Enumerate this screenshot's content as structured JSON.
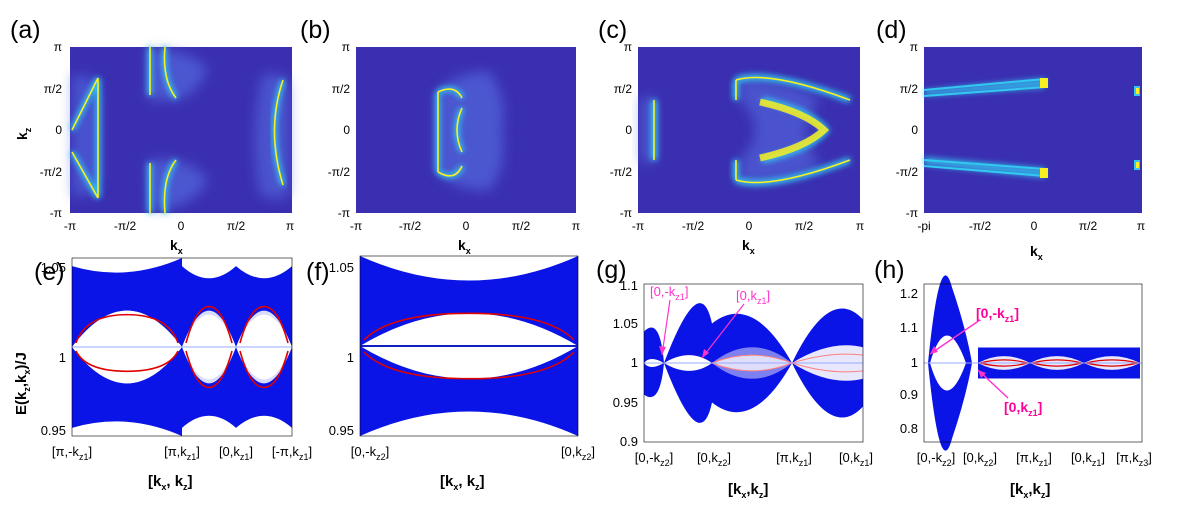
{
  "panel_labels": [
    "(a)",
    "(b)",
    "(c)",
    "(d)",
    "(e)",
    "(f)",
    "(g)",
    "(h)"
  ],
  "colors": {
    "map_background": "#3a2fb0",
    "ridge_glow": "#33c8f0",
    "ridge_core": "#f8f020",
    "band_blue": "#0a14e6",
    "band_light": "#c8c8f8",
    "red_line": "#e00000",
    "center_line_light": "#9aa8ff",
    "pink": "#ff33cc"
  },
  "chart_data": [
    {
      "type": "heatmap",
      "panel": "(a)",
      "xlabel": "k",
      "xlabel_sub": "x",
      "ylabel": "k",
      "ylabel_sub": "z",
      "x_ticks": [
        "-π",
        "-π/2",
        "0",
        "π/2",
        "π"
      ],
      "y_ticks": [
        "π",
        "π/2",
        "0",
        "-π/2",
        "-π"
      ],
      "xlim": [
        -3.1416,
        3.1416
      ],
      "ylim": [
        -3.1416,
        3.1416
      ]
    },
    {
      "type": "heatmap",
      "panel": "(b)",
      "xlabel": "k",
      "xlabel_sub": "x",
      "x_ticks": [
        "-π",
        "-π/2",
        "0",
        "π/2",
        "π"
      ],
      "y_ticks": [
        "π",
        "π/2",
        "0",
        "-π/2",
        "-π"
      ],
      "xlim": [
        -3.1416,
        3.1416
      ],
      "ylim": [
        -3.1416,
        3.1416
      ]
    },
    {
      "type": "heatmap",
      "panel": "(c)",
      "xlabel": "k",
      "xlabel_sub": "x",
      "x_ticks": [
        "-π",
        "-π/2",
        "0",
        "π/2",
        "π"
      ],
      "y_ticks": [
        "π",
        "π/2",
        "0",
        "-π/2",
        "-π"
      ],
      "xlim": [
        -3.1416,
        3.1416
      ],
      "ylim": [
        -3.1416,
        3.1416
      ]
    },
    {
      "type": "heatmap",
      "panel": "(d)",
      "xlabel": "k",
      "xlabel_sub": "x",
      "x_ticks": [
        "-pi",
        "-π/2",
        "0",
        "π/2",
        "π"
      ],
      "y_ticks": [
        "π",
        "π/2",
        "0",
        "-π/2",
        "-π"
      ],
      "xlim": [
        -3.1416,
        3.1416
      ],
      "ylim": [
        -3.1416,
        3.1416
      ]
    },
    {
      "type": "area",
      "panel": "(e)",
      "ylabel": "E(k",
      "ylabel_parts": [
        "E(k",
        "z",
        ",k",
        "x",
        ")/J"
      ],
      "xlabel_parts": [
        "[k",
        "x",
        ", k",
        "z",
        "]"
      ],
      "y_ticks": [
        "1.05",
        "1",
        "0.95"
      ],
      "ylim": [
        0.945,
        1.055
      ],
      "x_ticks": [
        {
          "pre": "[π,-k",
          "sub": "z1",
          "post": "]"
        },
        {
          "pre": "[π,k",
          "sub": "z1",
          "post": "]"
        },
        {
          "pre": "[0,k",
          "sub": "z1",
          "post": "]"
        },
        {
          "pre": "[-π,k",
          "sub": "z1",
          "post": "]"
        }
      ],
      "segments": [
        {
          "from": 0,
          "to": 1,
          "band_upper": [
            1.05,
            1.04,
            1.055
          ],
          "band_lower": [
            0.95,
            0.96,
            0.945
          ],
          "red_top": 1.02,
          "red_bottom": 0.985
        },
        {
          "from": 1,
          "to": 2,
          "band_upper": [
            1.05,
            1.035,
            1.05
          ],
          "band_lower": [
            0.95,
            0.965,
            0.95
          ],
          "red_top": 1.025,
          "red_bottom": 0.975
        },
        {
          "from": 2,
          "to": 3,
          "band_upper": [
            1.05,
            1.035,
            1.05
          ],
          "band_lower": [
            0.95,
            0.965,
            0.95
          ],
          "red_top": 1.025,
          "red_bottom": 0.975
        }
      ]
    },
    {
      "type": "area",
      "panel": "(f)",
      "xlabel_parts": [
        "[k",
        "x",
        ", k",
        "z",
        "]"
      ],
      "y_ticks": [
        "1.05",
        "1",
        "0.95"
      ],
      "ylim": [
        0.945,
        1.055
      ],
      "x_ticks": [
        {
          "pre": "[0,-k",
          "sub": "z2",
          "post": "]"
        },
        {
          "pre": "[0,k",
          "sub": "z2",
          "post": "]"
        }
      ],
      "red_top": 1.02,
      "red_bottom": 0.98
    },
    {
      "type": "area",
      "panel": "(g)",
      "xlabel_parts": [
        "[k",
        "x",
        ",k",
        "z",
        "]"
      ],
      "y_ticks": [
        "1.1",
        "1.05",
        "1",
        "0.95",
        "0.9"
      ],
      "ylim": [
        0.9,
        1.1
      ],
      "x_ticks": [
        {
          "pre": "[0,-k",
          "sub": "z2",
          "post": "]"
        },
        {
          "pre": "[0,k",
          "sub": "z2",
          "post": "]"
        },
        {
          "pre": "[π,k",
          "sub": "z1",
          "post": "]"
        },
        {
          "pre": "[0,k",
          "sub": "z1",
          "post": "]"
        }
      ],
      "annotations": [
        {
          "pre": "[0,-k",
          "sub": "z1",
          "post": "]"
        },
        {
          "pre": "[0,k",
          "sub": "z1",
          "post": "]"
        }
      ]
    },
    {
      "type": "area",
      "panel": "(h)",
      "xlabel_parts": [
        "[k",
        "x",
        ",k",
        "z",
        "]"
      ],
      "y_ticks": [
        "1.2",
        "1.1",
        "1",
        "0.9",
        "0.8"
      ],
      "ylim": [
        0.77,
        1.23
      ],
      "x_ticks": [
        {
          "pre": "[0,-k",
          "sub": "z2",
          "post": "]"
        },
        {
          "pre": "[0,k",
          "sub": "z2",
          "post": "]"
        },
        {
          "pre": "[π,k",
          "sub": "z1",
          "post": "]"
        },
        {
          "pre": "[0,k",
          "sub": "z1",
          "post": "]"
        },
        {
          "pre": "[π,k",
          "sub": "z3",
          "post": "]"
        }
      ],
      "annotations": [
        {
          "pre": "[0,-k",
          "sub": "z1",
          "post": "]"
        },
        {
          "pre": "[0,k",
          "sub": "z1",
          "post": "]"
        }
      ]
    }
  ]
}
